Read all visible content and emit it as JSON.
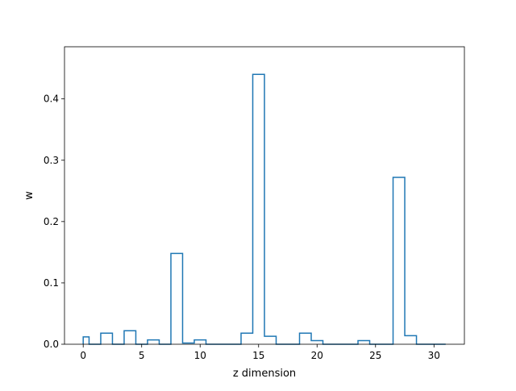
{
  "chart_data": {
    "type": "histogram",
    "title": "",
    "xlabel": "z dimension",
    "ylabel": "w",
    "xlim": [
      -1.6,
      32.6
    ],
    "ylim": [
      0,
      0.485
    ],
    "x_ticks": [
      0,
      5,
      10,
      15,
      20,
      25,
      30
    ],
    "y_ticks": [
      0.0,
      0.1,
      0.2,
      0.3,
      0.4
    ],
    "x_tick_labels": [
      "0",
      "5",
      "10",
      "15",
      "20",
      "25",
      "30"
    ],
    "y_tick_labels": [
      "0.0",
      "0.1",
      "0.2",
      "0.3",
      "0.4"
    ],
    "bin_edges": [
      0,
      0.5,
      1.5,
      2.5,
      3.5,
      4.5,
      5.5,
      6.5,
      7.5,
      8.5,
      9.5,
      10.5,
      11.5,
      12.5,
      13.5,
      14.5,
      15.5,
      16.5,
      17.5,
      18.5,
      19.5,
      20.5,
      21.5,
      22.5,
      23.5,
      24.5,
      25.5,
      26.5,
      27.5,
      28.5,
      29.5,
      30.5,
      31
    ],
    "values": [
      0.012,
      0.0,
      0.018,
      0.0,
      0.022,
      0.0,
      0.007,
      0.0,
      0.148,
      0.002,
      0.007,
      0.0,
      0.0,
      0.0,
      0.018,
      0.44,
      0.013,
      0.0,
      0.0,
      0.018,
      0.006,
      0.0,
      0.0,
      0.0,
      0.006,
      0.0,
      0.0,
      0.272,
      0.014,
      0.0,
      0.0,
      0.0
    ],
    "histtype": "step",
    "grid": false,
    "legend": "none",
    "colors": {
      "line": "#1f77b4",
      "axes": "#000000",
      "background": "#ffffff"
    }
  }
}
